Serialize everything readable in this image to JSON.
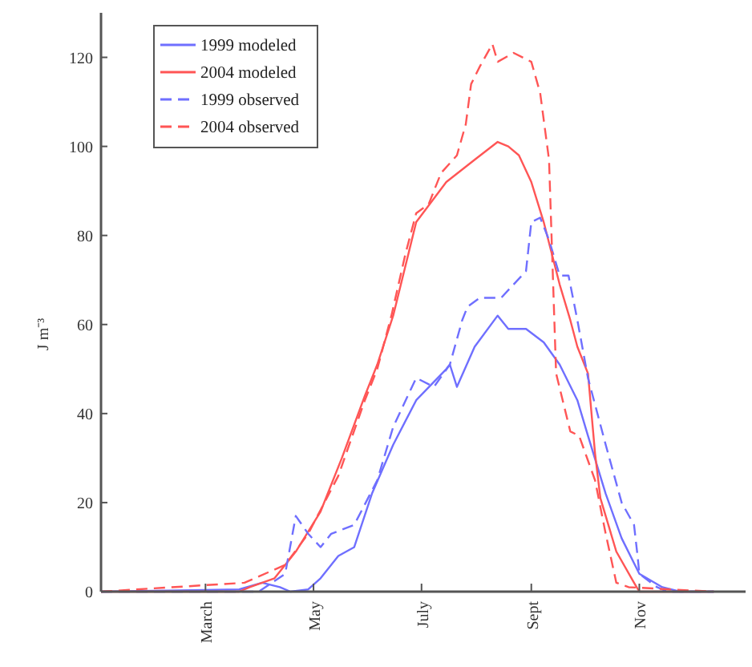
{
  "chart_data": {
    "type": "line",
    "ylabel": "J m⁻³",
    "xlim": [
      "--01-01",
      "--12-31"
    ],
    "xticks": [
      {
        "value": "--03-01",
        "label": "March"
      },
      {
        "value": "--05-01",
        "label": "May"
      },
      {
        "value": "--07-01",
        "label": "July"
      },
      {
        "value": "--09-01",
        "label": "Sept"
      },
      {
        "value": "--11-01",
        "label": "Nov"
      }
    ],
    "ylim": [
      0,
      130
    ],
    "yticks": [
      0,
      20,
      40,
      60,
      80,
      100,
      120
    ],
    "grid": false,
    "legend": "top left",
    "marker": "none",
    "series": [
      {
        "name": "1999 modeled",
        "color": "#6f6fff",
        "line_style": "solid",
        "x": [
          "--01-01",
          "--03-20",
          "--04-02",
          "--04-12",
          "--04-18",
          "--04-28",
          "--05-05",
          "--05-15",
          "--05-24",
          "--06-03",
          "--06-15",
          "--06-28",
          "--07-15",
          "--07-17",
          "--07-21",
          "--07-31",
          "--08-13",
          "--08-19",
          "--08-29",
          "--09-08",
          "--09-17",
          "--09-27",
          "--10-03",
          "--10-13",
          "--10-22",
          "--11-01",
          "--11-14",
          "--11-24",
          "--12-13"
        ],
        "values": [
          0,
          0.5,
          2,
          1,
          0,
          0.5,
          3,
          8,
          10,
          22,
          33,
          43,
          50,
          51,
          46,
          55,
          62,
          59,
          59,
          56,
          51,
          43,
          35,
          22,
          12,
          4,
          1,
          0,
          0
        ]
      },
      {
        "name": "2004 modeled",
        "color": "#ff5555",
        "line_style": "solid",
        "x": [
          "--01-01",
          "--03-20",
          "--03-26",
          "--04-09",
          "--04-21",
          "--05-05",
          "--05-17",
          "--05-30",
          "--06-06",
          "--06-15",
          "--06-28",
          "--07-15",
          "--07-31",
          "--08-13",
          "--08-19",
          "--08-25",
          "--09-01",
          "--09-08",
          "--09-17",
          "--09-23",
          "--09-27",
          "--10-03",
          "--10-07",
          "--10-10",
          "--10-19",
          "--10-29",
          "--11-01",
          "--12-13"
        ],
        "values": [
          0,
          0,
          1,
          3,
          9,
          18,
          30,
          44,
          51,
          62,
          83,
          92,
          97,
          101,
          100,
          98,
          92,
          83,
          69,
          61,
          55,
          49,
          31,
          21,
          9,
          2,
          0,
          0
        ]
      },
      {
        "name": "1999 observed",
        "color": "#6f6fff",
        "line_style": "dashed",
        "x": [
          "--01-01",
          "--03-31",
          "--04-15",
          "--04-21",
          "--04-28",
          "--05-05",
          "--05-11",
          "--05-24",
          "--06-06",
          "--06-15",
          "--06-28",
          "--07-08",
          "--07-17",
          "--07-24",
          "--07-27",
          "--08-03",
          "--08-15",
          "--08-29",
          "--09-01",
          "--09-06",
          "--09-11",
          "--09-17",
          "--09-22",
          "--09-27",
          "--10-03",
          "--10-13",
          "--10-22",
          "--10-29",
          "--10-31",
          "--11-01",
          "--11-11",
          "--11-17",
          "--12-13"
        ],
        "values": [
          0,
          0,
          4,
          17,
          13,
          10,
          13,
          15,
          25,
          37,
          48,
          46,
          51,
          61,
          64,
          66,
          66,
          72,
          83,
          84,
          79,
          71,
          71,
          61,
          48,
          33,
          20,
          15,
          8,
          4,
          1,
          0,
          0
        ]
      },
      {
        "name": "2004 observed",
        "color": "#ff5555",
        "line_style": "dashed",
        "x": [
          "--01-01",
          "--03-23",
          "--04-15",
          "--04-28",
          "--05-15",
          "--05-30",
          "--06-06",
          "--06-14",
          "--06-22",
          "--06-28",
          "--07-05",
          "--07-12",
          "--07-21",
          "--07-26",
          "--07-29",
          "--08-03",
          "--08-10",
          "--08-13",
          "--08-22",
          "--09-01",
          "--09-06",
          "--09-11",
          "--09-14",
          "--09-15",
          "--09-23",
          "--09-28",
          "--10-07",
          "--10-13",
          "--10-19",
          "--10-26",
          "--12-13"
        ],
        "values": [
          0,
          2,
          6,
          13,
          26,
          43,
          50,
          62,
          76,
          85,
          87,
          94,
          98,
          105,
          114,
          118,
          123,
          119,
          121,
          119,
          112,
          97,
          61,
          49,
          36,
          35,
          25,
          13,
          2,
          1,
          0
        ]
      }
    ]
  }
}
